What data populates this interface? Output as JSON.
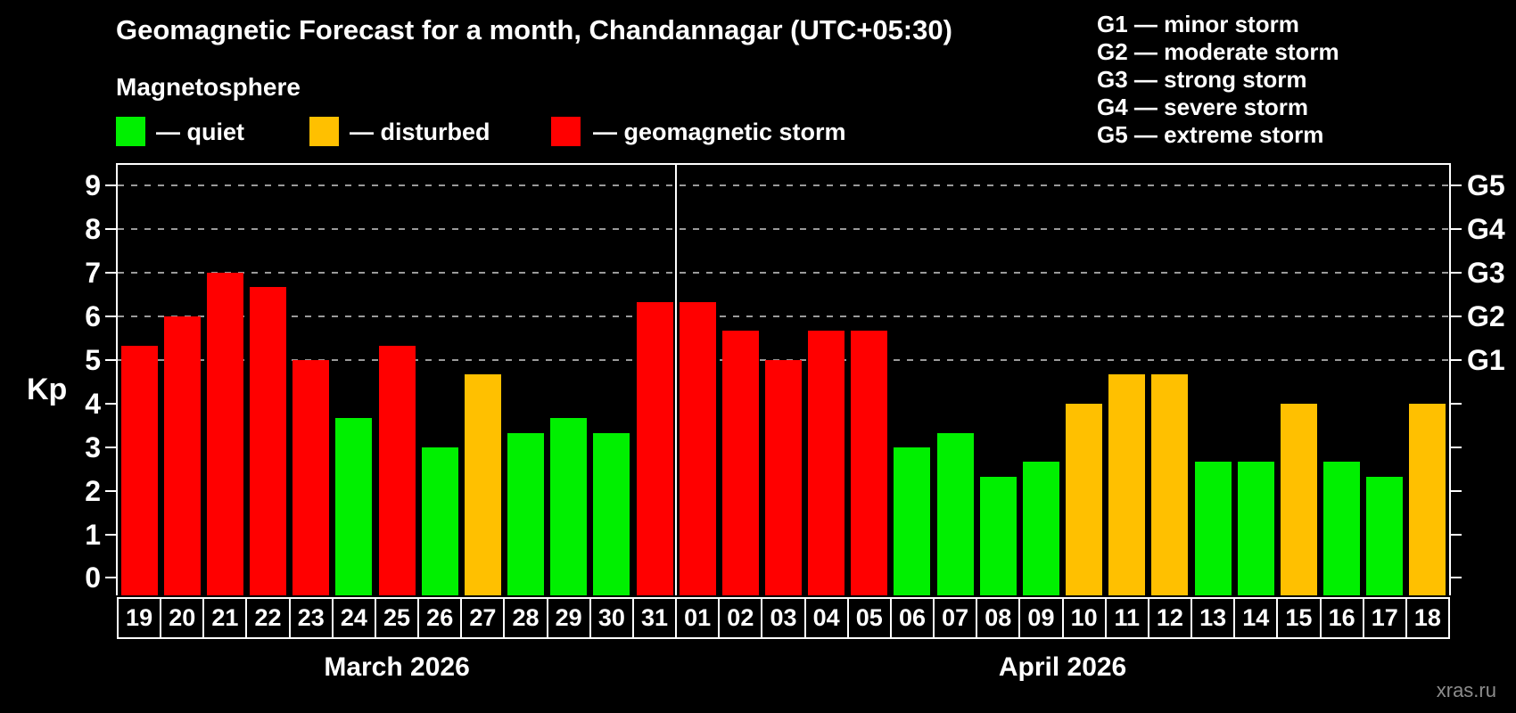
{
  "title": "Geomagnetic Forecast for a month, Chandannagar (UTC+05:30)",
  "subtitle": "Magnetosphere",
  "legend": {
    "quiet": "— quiet",
    "disturbed": "— disturbed",
    "storm": "— geomagnetic storm"
  },
  "g_scale": [
    "G1 — minor storm",
    "G2 — moderate storm",
    "G3 — strong storm",
    "G4 — severe storm",
    "G5 — extreme storm"
  ],
  "watermark": "xras.ru",
  "colors": {
    "quiet": "#00f000",
    "disturbed": "#ffc000",
    "storm": "#ff0000"
  },
  "chart_data": {
    "type": "bar",
    "title": "Geomagnetic Forecast for a month, Chandannagar (UTC+05:30)",
    "xlabel": "",
    "ylabel": "Kp",
    "ylim": [
      -0.4,
      9.48
    ],
    "yticks": [
      0,
      1,
      2,
      3,
      4,
      5,
      6,
      7,
      8,
      9
    ],
    "gridlines": [
      5,
      6,
      7,
      8,
      9
    ],
    "grid": "dashed horizontal at storm levels only",
    "legend_position": "top",
    "right_labels": [
      {
        "value": 5,
        "label": "G1"
      },
      {
        "value": 6,
        "label": "G2"
      },
      {
        "value": 7,
        "label": "G3"
      },
      {
        "value": 8,
        "label": "G4"
      },
      {
        "value": 9,
        "label": "G5"
      }
    ],
    "months": [
      {
        "label": "March 2026",
        "days": 13
      },
      {
        "label": "April 2026",
        "days": 18
      }
    ],
    "bars": [
      {
        "day": "19",
        "kp": 5.33,
        "level": "storm"
      },
      {
        "day": "20",
        "kp": 6.0,
        "level": "storm"
      },
      {
        "day": "21",
        "kp": 7.0,
        "level": "storm"
      },
      {
        "day": "22",
        "kp": 6.67,
        "level": "storm"
      },
      {
        "day": "23",
        "kp": 5.0,
        "level": "storm"
      },
      {
        "day": "24",
        "kp": 3.67,
        "level": "quiet"
      },
      {
        "day": "25",
        "kp": 5.33,
        "level": "storm"
      },
      {
        "day": "26",
        "kp": 3.0,
        "level": "quiet"
      },
      {
        "day": "27",
        "kp": 4.67,
        "level": "disturbed"
      },
      {
        "day": "28",
        "kp": 3.33,
        "level": "quiet"
      },
      {
        "day": "29",
        "kp": 3.67,
        "level": "quiet"
      },
      {
        "day": "30",
        "kp": 3.33,
        "level": "quiet"
      },
      {
        "day": "31",
        "kp": 6.33,
        "level": "storm"
      },
      {
        "day": "01",
        "kp": 6.33,
        "level": "storm"
      },
      {
        "day": "02",
        "kp": 5.67,
        "level": "storm"
      },
      {
        "day": "03",
        "kp": 5.0,
        "level": "storm"
      },
      {
        "day": "04",
        "kp": 5.67,
        "level": "storm"
      },
      {
        "day": "05",
        "kp": 5.67,
        "level": "storm"
      },
      {
        "day": "06",
        "kp": 3.0,
        "level": "quiet"
      },
      {
        "day": "07",
        "kp": 3.33,
        "level": "quiet"
      },
      {
        "day": "08",
        "kp": 2.33,
        "level": "quiet"
      },
      {
        "day": "09",
        "kp": 2.67,
        "level": "quiet"
      },
      {
        "day": "10",
        "kp": 4.0,
        "level": "disturbed"
      },
      {
        "day": "11",
        "kp": 4.67,
        "level": "disturbed"
      },
      {
        "day": "12",
        "kp": 4.67,
        "level": "disturbed"
      },
      {
        "day": "13",
        "kp": 2.67,
        "level": "quiet"
      },
      {
        "day": "14",
        "kp": 2.67,
        "level": "quiet"
      },
      {
        "day": "15",
        "kp": 4.0,
        "level": "disturbed"
      },
      {
        "day": "16",
        "kp": 2.67,
        "level": "quiet"
      },
      {
        "day": "17",
        "kp": 2.33,
        "level": "quiet"
      },
      {
        "day": "18",
        "kp": 4.0,
        "level": "disturbed"
      }
    ]
  }
}
